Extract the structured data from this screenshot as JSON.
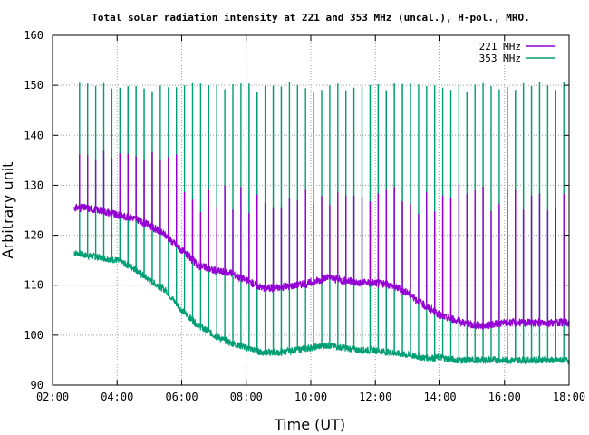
{
  "chart_data": {
    "type": "line",
    "title": "Total solar radiation intensity at 221 and 353 MHz (uncal.), H-pol., MRO.",
    "xlabel": "Time (UT)",
    "ylabel": "Arbitrary unit",
    "xlim": [
      "02:00",
      "18:00"
    ],
    "ylim": [
      90,
      160
    ],
    "x_ticks": [
      "02:00",
      "04:00",
      "06:00",
      "08:00",
      "10:00",
      "12:00",
      "14:00",
      "16:00",
      "18:00"
    ],
    "y_ticks": [
      "90",
      "100",
      "110",
      "120",
      "130",
      "140",
      "150",
      "160"
    ],
    "grid": true,
    "legend_position": "top-right",
    "colors": {
      "221 MHz": "#9400d3",
      "353 MHz": "#009e73"
    },
    "series": [
      {
        "name": "221 MHz",
        "color": "#9400d3",
        "x": [
          "02:40",
          "03:00",
          "03:30",
          "04:00",
          "04:30",
          "05:00",
          "05:30",
          "06:00",
          "06:30",
          "07:00",
          "07:30",
          "08:00",
          "08:30",
          "09:00",
          "09:30",
          "10:00",
          "10:30",
          "11:00",
          "11:30",
          "12:00",
          "12:30",
          "13:00",
          "13:30",
          "14:00",
          "14:30",
          "15:00",
          "15:30",
          "16:00",
          "16:30",
          "17:00",
          "17:30",
          "18:00"
        ],
        "values": [
          125.5,
          125.5,
          125,
          124,
          123.5,
          122,
          120,
          117,
          114,
          113,
          112.5,
          111,
          109.5,
          109.5,
          110,
          110.5,
          111.5,
          111,
          110.5,
          110.5,
          110,
          108.5,
          106,
          104,
          103,
          102,
          102,
          102.5,
          102.5,
          102.5,
          102.5,
          102.5
        ]
      },
      {
        "name": "353 MHz",
        "color": "#009e73",
        "x": [
          "02:40",
          "03:00",
          "03:30",
          "04:00",
          "04:30",
          "05:00",
          "05:30",
          "06:00",
          "06:30",
          "07:00",
          "07:30",
          "08:00",
          "08:30",
          "09:00",
          "09:30",
          "10:00",
          "10:30",
          "11:00",
          "11:30",
          "12:00",
          "12:30",
          "13:00",
          "13:30",
          "14:00",
          "14:30",
          "15:00",
          "15:30",
          "16:00",
          "16:30",
          "17:00",
          "17:30",
          "18:00"
        ],
        "values": [
          116.5,
          116,
          115.5,
          115,
          113.5,
          111,
          109,
          105,
          102,
          100,
          98.5,
          97.5,
          96.5,
          96.5,
          97,
          97.5,
          98,
          97.5,
          97,
          97,
          96.5,
          96,
          95.5,
          95.5,
          95,
          95,
          95,
          95,
          95,
          95,
          95,
          95
        ]
      }
    ],
    "calibration_spikes": {
      "353 MHz_peak": 150.5,
      "221 MHz_peak": 137,
      "221 MHz_plateau": 124,
      "interval_minutes": 15,
      "start": "02:50",
      "end": "17:55"
    }
  }
}
